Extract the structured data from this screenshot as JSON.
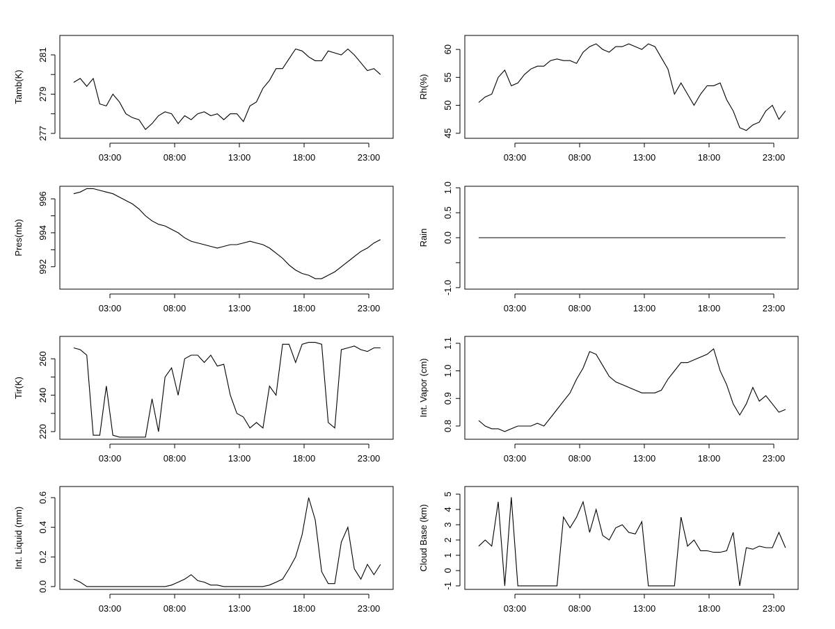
{
  "chart_data": [
    {
      "type": "line",
      "ylabel": "Tamb(K)",
      "xlim": [
        -0.87,
        24.88
      ],
      "ylim": [
        276.75,
        281.99
      ],
      "xticks": [
        3,
        8,
        13,
        18,
        23
      ],
      "xtick_labels": [
        "03:00",
        "08:00",
        "13:00",
        "18:00",
        "23:00"
      ],
      "yticks": [
        277,
        278,
        279,
        280,
        281
      ],
      "ytick_labels": [
        "277",
        "",
        "279",
        "",
        "281"
      ],
      "values": [
        279.6,
        279.8,
        279.4,
        279.8,
        278.5,
        278.4,
        279.0,
        278.6,
        278.0,
        277.8,
        277.7,
        277.2,
        277.5,
        277.9,
        278.1,
        278.0,
        277.5,
        277.9,
        277.7,
        278.0,
        278.1,
        277.9,
        278.0,
        277.7,
        278.0,
        278.0,
        277.6,
        278.4,
        278.6,
        279.3,
        279.7,
        280.3,
        280.3,
        280.8,
        281.3,
        281.2,
        280.9,
        280.7,
        280.7,
        281.2,
        281.1,
        281.0,
        281.3,
        281.0,
        280.6,
        280.2,
        280.3,
        280.0
      ]
    },
    {
      "type": "line",
      "ylabel": "Rh(%)",
      "xlim": [
        -0.87,
        24.88
      ],
      "ylim": [
        44.1,
        62.5
      ],
      "xticks": [
        3,
        8,
        13,
        18,
        23
      ],
      "xtick_labels": [
        "03:00",
        "08:00",
        "13:00",
        "18:00",
        "23:00"
      ],
      "yticks": [
        45,
        50,
        55,
        60
      ],
      "ytick_labels": [
        "45",
        "50",
        "55",
        "60"
      ],
      "values": [
        50.5,
        51.5,
        52,
        55,
        56.3,
        53.5,
        54,
        55.5,
        56.5,
        57,
        57,
        58,
        58.3,
        58,
        58,
        57.5,
        59.5,
        60.5,
        61,
        60,
        59.5,
        60.5,
        60.5,
        61,
        60.5,
        60,
        61,
        60.5,
        58.5,
        56.5,
        52,
        54,
        52,
        50,
        52,
        53.5,
        53.5,
        54,
        51,
        49,
        46,
        45.5,
        46.5,
        47,
        49,
        50,
        47.5,
        49
      ]
    },
    {
      "type": "line",
      "ylabel": "Pres(mb)",
      "xlim": [
        -0.87,
        24.88
      ],
      "ylim": [
        990.68,
        996.74
      ],
      "xticks": [
        3,
        8,
        13,
        18,
        23
      ],
      "xtick_labels": [
        "03:00",
        "08:00",
        "13:00",
        "18:00",
        "23:00"
      ],
      "yticks": [
        992,
        993,
        994,
        995,
        996
      ],
      "ytick_labels": [
        "992",
        "",
        "994",
        "",
        "996"
      ],
      "values": [
        996.3,
        996.4,
        996.6,
        996.6,
        996.5,
        996.4,
        996.3,
        996.1,
        995.9,
        995.7,
        995.4,
        995.0,
        994.7,
        994.5,
        994.4,
        994.2,
        994.0,
        993.7,
        993.5,
        993.4,
        993.3,
        993.2,
        993.1,
        993.2,
        993.3,
        993.3,
        993.4,
        993.5,
        993.4,
        993.3,
        993.1,
        992.8,
        992.5,
        992.1,
        991.8,
        991.6,
        991.5,
        991.3,
        991.3,
        991.5,
        991.7,
        992.0,
        992.3,
        992.6,
        992.9,
        993.1,
        993.4,
        993.6
      ]
    },
    {
      "type": "line",
      "ylabel": "Rain",
      "xlim": [
        -0.87,
        24.88
      ],
      "ylim": [
        -1.03,
        1.03
      ],
      "xticks": [
        3,
        8,
        13,
        18,
        23
      ],
      "xtick_labels": [
        "03:00",
        "08:00",
        "13:00",
        "18:00",
        "23:00"
      ],
      "yticks": [
        -1,
        -0.5,
        0,
        0.5,
        1
      ],
      "ytick_labels": [
        "-1.0",
        "",
        "0.0",
        "0.5",
        "1.0"
      ],
      "values": [
        0,
        0,
        0,
        0,
        0,
        0,
        0,
        0,
        0,
        0,
        0,
        0,
        0,
        0,
        0,
        0,
        0,
        0,
        0,
        0,
        0,
        0,
        0,
        0,
        0,
        0,
        0,
        0,
        0,
        0,
        0,
        0,
        0,
        0,
        0,
        0,
        0,
        0,
        0,
        0,
        0,
        0,
        0,
        0,
        0,
        0,
        0,
        0
      ]
    },
    {
      "type": "line",
      "ylabel": "Tir(K)",
      "xlim": [
        -0.87,
        24.88
      ],
      "ylim": [
        215.8,
        272.3
      ],
      "xticks": [
        3,
        8,
        13,
        18,
        23
      ],
      "xtick_labels": [
        "03:00",
        "08:00",
        "13:00",
        "18:00",
        "23:00"
      ],
      "yticks": [
        220,
        230,
        240,
        250,
        260
      ],
      "ytick_labels": [
        "220",
        "",
        "240",
        "",
        "260"
      ],
      "values": [
        266,
        265,
        262,
        218,
        218,
        245,
        218,
        217,
        217,
        217,
        217,
        217,
        238,
        220,
        250,
        255,
        240,
        260,
        262,
        262,
        258,
        262,
        256,
        257,
        240,
        230,
        228,
        222,
        225,
        222,
        245,
        240,
        268,
        268,
        258,
        268,
        269,
        269,
        268,
        225,
        222,
        265,
        266,
        267,
        265,
        264,
        266,
        266
      ]
    },
    {
      "type": "line",
      "ylabel": "Int. Vapor (cm)",
      "xlim": [
        -0.87,
        24.88
      ],
      "ylim": [
        0.752,
        1.125
      ],
      "xticks": [
        3,
        8,
        13,
        18,
        23
      ],
      "xtick_labels": [
        "03:00",
        "08:00",
        "13:00",
        "18:00",
        "23:00"
      ],
      "yticks": [
        0.8,
        0.9,
        1.0,
        1.1
      ],
      "ytick_labels": [
        "0.8",
        "0.9",
        "1.0",
        "1.1"
      ],
      "values": [
        0.82,
        0.8,
        0.79,
        0.79,
        0.78,
        0.79,
        0.8,
        0.8,
        0.8,
        0.81,
        0.8,
        0.83,
        0.86,
        0.89,
        0.92,
        0.97,
        1.01,
        1.07,
        1.06,
        1.02,
        0.98,
        0.96,
        0.95,
        0.94,
        0.93,
        0.92,
        0.92,
        0.92,
        0.93,
        0.97,
        1.0,
        1.03,
        1.03,
        1.04,
        1.05,
        1.06,
        1.08,
        1.0,
        0.95,
        0.88,
        0.84,
        0.88,
        0.94,
        0.89,
        0.91,
        0.88,
        0.85,
        0.86
      ]
    },
    {
      "type": "line",
      "ylabel": "Int. Liquid (mm)",
      "xlim": [
        -0.87,
        24.88
      ],
      "ylim": [
        -0.019,
        0.675
      ],
      "xticks": [
        3,
        8,
        13,
        18,
        23
      ],
      "xtick_labels": [
        "03:00",
        "08:00",
        "13:00",
        "18:00",
        "23:00"
      ],
      "yticks": [
        0,
        0.2,
        0.4,
        0.6
      ],
      "ytick_labels": [
        "0.0",
        "0.2",
        "0.4",
        "0.6"
      ],
      "values": [
        0.05,
        0.03,
        0,
        0,
        0,
        0,
        0,
        0,
        0,
        0,
        0,
        0,
        0,
        0,
        0,
        0.01,
        0.03,
        0.05,
        0.08,
        0.04,
        0.03,
        0.01,
        0.01,
        0,
        0,
        0,
        0,
        0,
        0,
        0,
        0.01,
        0.03,
        0.05,
        0.12,
        0.2,
        0.35,
        0.6,
        0.45,
        0.1,
        0.02,
        0.02,
        0.3,
        0.4,
        0.12,
        0.05,
        0.15,
        0.08,
        0.15
      ]
    },
    {
      "type": "line",
      "ylabel": "Cloud Base (km)",
      "xlim": [
        -0.87,
        24.88
      ],
      "ylim": [
        -1.23,
        5.5
      ],
      "xticks": [
        3,
        8,
        13,
        18,
        23
      ],
      "xtick_labels": [
        "03:00",
        "08:00",
        "13:00",
        "18:00",
        "23:00"
      ],
      "yticks": [
        -1,
        0,
        1,
        2,
        3,
        4,
        5
      ],
      "ytick_labels": [
        "-1",
        "0",
        "1",
        "2",
        "3",
        "4",
        "5"
      ],
      "values": [
        1.6,
        2.0,
        1.6,
        4.5,
        -1,
        4.8,
        -1,
        -1,
        -1,
        -1,
        -1,
        -1,
        -1,
        3.5,
        2.8,
        3.5,
        4.5,
        2.5,
        4,
        2.3,
        2.0,
        2.8,
        3.0,
        2.5,
        2.4,
        3.2,
        -1,
        -1,
        -1,
        -1,
        -1,
        3.5,
        1.6,
        2.0,
        1.3,
        1.3,
        1.2,
        1.2,
        1.3,
        2.5,
        -1,
        1.5,
        1.4,
        1.6,
        1.5,
        1.5,
        2.5,
        1.5
      ]
    }
  ]
}
